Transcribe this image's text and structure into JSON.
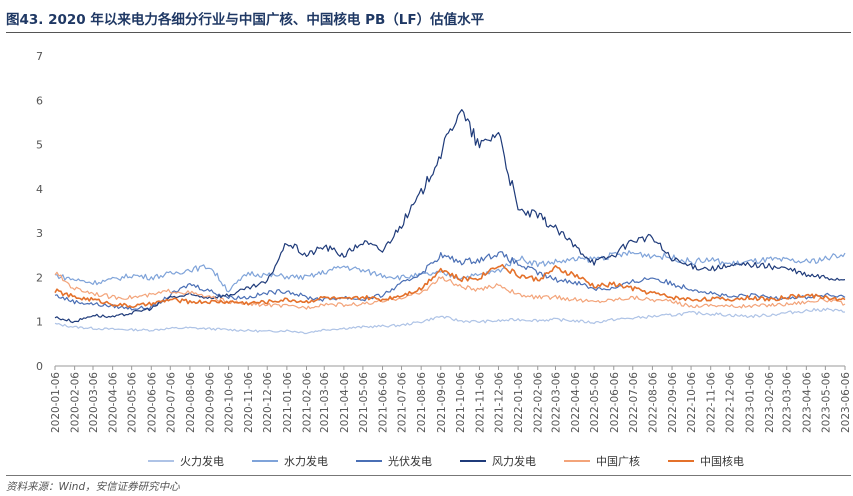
{
  "title": "图43. 2020 年以来电力各细分行业与中国广核、中国核电 PB（LF）估值水平",
  "source": "资料来源：Wind，安信证券研究中心",
  "chart_data": {
    "type": "line",
    "ylim": [
      0,
      7
    ],
    "yticks": [
      0,
      1,
      2,
      3,
      4,
      5,
      6,
      7
    ],
    "x_start": "2020-01-06",
    "x_end": "2023-06-06",
    "xticks": [
      "2020-01-06",
      "2020-02-06",
      "2020-03-06",
      "2020-04-06",
      "2020-05-06",
      "2020-06-06",
      "2020-07-06",
      "2020-08-06",
      "2020-09-06",
      "2020-10-06",
      "2020-11-06",
      "2020-12-06",
      "2021-01-06",
      "2021-02-06",
      "2021-03-06",
      "2021-04-06",
      "2021-05-06",
      "2021-06-06",
      "2021-07-06",
      "2021-08-06",
      "2021-09-06",
      "2021-10-06",
      "2021-11-06",
      "2021-12-06",
      "2022-01-06",
      "2022-02-06",
      "2022-03-06",
      "2022-04-06",
      "2022-05-06",
      "2022-06-06",
      "2022-07-06",
      "2022-08-06",
      "2022-09-06",
      "2022-10-06",
      "2022-11-06",
      "2022-12-06",
      "2023-01-06",
      "2023-02-06",
      "2023-03-06",
      "2023-04-06",
      "2023-05-06",
      "2023-06-06"
    ],
    "grid": false,
    "legend": "bottom",
    "series": [
      {
        "name": "火力发电",
        "color": "#aec3e6",
        "width": 1.2,
        "points": [
          [
            "2020-01-06",
            0.95
          ],
          [
            "2020-02-06",
            0.88
          ],
          [
            "2020-03-06",
            0.85
          ],
          [
            "2020-04-06",
            0.83
          ],
          [
            "2020-05-06",
            0.82
          ],
          [
            "2020-06-06",
            0.81
          ],
          [
            "2020-07-06",
            0.85
          ],
          [
            "2020-08-06",
            0.86
          ],
          [
            "2020-09-06",
            0.84
          ],
          [
            "2020-10-06",
            0.82
          ],
          [
            "2020-11-06",
            0.8
          ],
          [
            "2020-12-06",
            0.78
          ],
          [
            "2021-01-06",
            0.8
          ],
          [
            "2021-02-06",
            0.75
          ],
          [
            "2021-03-06",
            0.82
          ],
          [
            "2021-04-06",
            0.85
          ],
          [
            "2021-05-06",
            0.88
          ],
          [
            "2021-06-06",
            0.9
          ],
          [
            "2021-07-06",
            0.92
          ],
          [
            "2021-08-06",
            1.0
          ],
          [
            "2021-09-06",
            1.12
          ],
          [
            "2021-10-06",
            1.02
          ],
          [
            "2021-11-06",
            1.0
          ],
          [
            "2021-12-06",
            1.02
          ],
          [
            "2022-01-06",
            1.05
          ],
          [
            "2022-02-06",
            1.03
          ],
          [
            "2022-03-06",
            1.05
          ],
          [
            "2022-04-06",
            1.02
          ],
          [
            "2022-05-06",
            0.98
          ],
          [
            "2022-06-06",
            1.05
          ],
          [
            "2022-07-06",
            1.08
          ],
          [
            "2022-08-06",
            1.12
          ],
          [
            "2022-09-06",
            1.15
          ],
          [
            "2022-10-06",
            1.2
          ],
          [
            "2022-11-06",
            1.18
          ],
          [
            "2022-12-06",
            1.15
          ],
          [
            "2023-01-06",
            1.12
          ],
          [
            "2023-02-06",
            1.15
          ],
          [
            "2023-03-06",
            1.2
          ],
          [
            "2023-04-06",
            1.25
          ],
          [
            "2023-05-06",
            1.28
          ],
          [
            "2023-06-06",
            1.22
          ]
        ]
      },
      {
        "name": "水力发电",
        "color": "#7fa3d9",
        "width": 1.2,
        "points": [
          [
            "2020-01-06",
            2.05
          ],
          [
            "2020-02-06",
            1.95
          ],
          [
            "2020-03-06",
            1.88
          ],
          [
            "2020-04-06",
            1.95
          ],
          [
            "2020-05-06",
            2.05
          ],
          [
            "2020-06-06",
            2.0
          ],
          [
            "2020-07-06",
            2.08
          ],
          [
            "2020-08-06",
            2.18
          ],
          [
            "2020-09-06",
            2.25
          ],
          [
            "2020-10-06",
            1.7
          ],
          [
            "2020-11-06",
            2.1
          ],
          [
            "2020-12-06",
            2.05
          ],
          [
            "2021-01-06",
            2.02
          ],
          [
            "2021-02-06",
            2.0
          ],
          [
            "2021-03-06",
            2.12
          ],
          [
            "2021-04-06",
            2.25
          ],
          [
            "2021-05-06",
            2.15
          ],
          [
            "2021-06-06",
            2.05
          ],
          [
            "2021-07-06",
            2.0
          ],
          [
            "2021-08-06",
            2.05
          ],
          [
            "2021-09-06",
            2.1
          ],
          [
            "2021-10-06",
            2.0
          ],
          [
            "2021-11-06",
            2.05
          ],
          [
            "2021-12-06",
            2.15
          ],
          [
            "2022-01-06",
            2.45
          ],
          [
            "2022-02-06",
            2.3
          ],
          [
            "2022-03-06",
            2.35
          ],
          [
            "2022-04-06",
            2.4
          ],
          [
            "2022-05-06",
            2.42
          ],
          [
            "2022-06-06",
            2.5
          ],
          [
            "2022-07-06",
            2.55
          ],
          [
            "2022-08-06",
            2.5
          ],
          [
            "2022-09-06",
            2.45
          ],
          [
            "2022-10-06",
            2.35
          ],
          [
            "2022-11-06",
            2.4
          ],
          [
            "2022-12-06",
            2.3
          ],
          [
            "2023-01-06",
            2.35
          ],
          [
            "2023-02-06",
            2.4
          ],
          [
            "2023-03-06",
            2.38
          ],
          [
            "2023-04-06",
            2.35
          ],
          [
            "2023-05-06",
            2.42
          ],
          [
            "2023-06-06",
            2.55
          ]
        ]
      },
      {
        "name": "光伏发电",
        "color": "#4a6fb5",
        "width": 1.2,
        "points": [
          [
            "2020-01-06",
            1.6
          ],
          [
            "2020-02-06",
            1.45
          ],
          [
            "2020-03-06",
            1.4
          ],
          [
            "2020-04-06",
            1.35
          ],
          [
            "2020-05-06",
            1.3
          ],
          [
            "2020-06-06",
            1.32
          ],
          [
            "2020-07-06",
            1.6
          ],
          [
            "2020-08-06",
            1.85
          ],
          [
            "2020-09-06",
            1.7
          ],
          [
            "2020-10-06",
            1.55
          ],
          [
            "2020-11-06",
            1.55
          ],
          [
            "2020-12-06",
            1.65
          ],
          [
            "2021-01-06",
            1.7
          ],
          [
            "2021-02-06",
            1.55
          ],
          [
            "2021-03-06",
            1.5
          ],
          [
            "2021-04-06",
            1.55
          ],
          [
            "2021-05-06",
            1.5
          ],
          [
            "2021-06-06",
            1.6
          ],
          [
            "2021-07-06",
            1.85
          ],
          [
            "2021-08-06",
            2.1
          ],
          [
            "2021-09-06",
            2.5
          ],
          [
            "2021-10-06",
            2.35
          ],
          [
            "2021-11-06",
            2.4
          ],
          [
            "2021-12-06",
            2.55
          ],
          [
            "2022-01-06",
            2.3
          ],
          [
            "2022-02-06",
            2.1
          ],
          [
            "2022-03-06",
            1.95
          ],
          [
            "2022-04-06",
            1.9
          ],
          [
            "2022-05-06",
            1.75
          ],
          [
            "2022-06-06",
            1.75
          ],
          [
            "2022-07-06",
            1.9
          ],
          [
            "2022-08-06",
            2.0
          ],
          [
            "2022-09-06",
            1.85
          ],
          [
            "2022-10-06",
            1.75
          ],
          [
            "2022-11-06",
            1.65
          ],
          [
            "2022-12-06",
            1.55
          ],
          [
            "2023-01-06",
            1.6
          ],
          [
            "2023-02-06",
            1.55
          ],
          [
            "2023-03-06",
            1.55
          ],
          [
            "2023-04-06",
            1.55
          ],
          [
            "2023-05-06",
            1.6
          ],
          [
            "2023-06-06",
            1.55
          ]
        ]
      },
      {
        "name": "风力发电",
        "color": "#1f3b7a",
        "width": 1.2,
        "points": [
          [
            "2020-01-06",
            1.1
          ],
          [
            "2020-02-06",
            1.0
          ],
          [
            "2020-03-06",
            1.15
          ],
          [
            "2020-04-06",
            1.1
          ],
          [
            "2020-05-06",
            1.2
          ],
          [
            "2020-06-06",
            1.3
          ],
          [
            "2020-07-06",
            1.55
          ],
          [
            "2020-08-06",
            1.6
          ],
          [
            "2020-09-06",
            1.55
          ],
          [
            "2020-10-06",
            1.6
          ],
          [
            "2020-11-06",
            1.75
          ],
          [
            "2020-12-06",
            1.9
          ],
          [
            "2021-01-06",
            2.8
          ],
          [
            "2021-02-06",
            2.5
          ],
          [
            "2021-03-06",
            2.7
          ],
          [
            "2021-04-06",
            2.5
          ],
          [
            "2021-05-06",
            2.8
          ],
          [
            "2021-06-06",
            2.6
          ],
          [
            "2021-07-06",
            3.2
          ],
          [
            "2021-08-06",
            3.9
          ],
          [
            "2021-09-06",
            4.8
          ],
          [
            "2021-10-06",
            5.8
          ],
          [
            "2021-11-06",
            4.95
          ],
          [
            "2021-12-06",
            5.3
          ],
          [
            "2022-01-06",
            3.5
          ],
          [
            "2022-02-06",
            3.4
          ],
          [
            "2022-03-06",
            3.1
          ],
          [
            "2022-04-06",
            2.7
          ],
          [
            "2022-05-06",
            2.35
          ],
          [
            "2022-06-06",
            2.5
          ],
          [
            "2022-07-06",
            2.85
          ],
          [
            "2022-08-06",
            2.9
          ],
          [
            "2022-09-06",
            2.4
          ],
          [
            "2022-10-06",
            2.25
          ],
          [
            "2022-11-06",
            2.2
          ],
          [
            "2022-12-06",
            2.25
          ],
          [
            "2023-01-06",
            2.3
          ],
          [
            "2023-02-06",
            2.25
          ],
          [
            "2023-03-06",
            2.2
          ],
          [
            "2023-04-06",
            2.05
          ],
          [
            "2023-05-06",
            2.0
          ],
          [
            "2023-06-06",
            1.95
          ]
        ]
      },
      {
        "name": "中国广核",
        "color": "#f3a47a",
        "width": 1.2,
        "points": [
          [
            "2020-01-06",
            2.1
          ],
          [
            "2020-02-06",
            1.75
          ],
          [
            "2020-03-06",
            1.65
          ],
          [
            "2020-04-06",
            1.55
          ],
          [
            "2020-05-06",
            1.55
          ],
          [
            "2020-06-06",
            1.6
          ],
          [
            "2020-07-06",
            1.7
          ],
          [
            "2020-08-06",
            1.65
          ],
          [
            "2020-09-06",
            1.55
          ],
          [
            "2020-10-06",
            1.45
          ],
          [
            "2020-11-06",
            1.4
          ],
          [
            "2020-12-06",
            1.38
          ],
          [
            "2021-01-06",
            1.35
          ],
          [
            "2021-02-06",
            1.32
          ],
          [
            "2021-03-06",
            1.4
          ],
          [
            "2021-04-06",
            1.38
          ],
          [
            "2021-05-06",
            1.4
          ],
          [
            "2021-06-06",
            1.45
          ],
          [
            "2021-07-06",
            1.55
          ],
          [
            "2021-08-06",
            1.65
          ],
          [
            "2021-09-06",
            2.0
          ],
          [
            "2021-10-06",
            1.8
          ],
          [
            "2021-11-06",
            1.7
          ],
          [
            "2021-12-06",
            1.85
          ],
          [
            "2022-01-06",
            1.6
          ],
          [
            "2022-02-06",
            1.55
          ],
          [
            "2022-03-06",
            1.55
          ],
          [
            "2022-04-06",
            1.5
          ],
          [
            "2022-05-06",
            1.45
          ],
          [
            "2022-06-06",
            1.5
          ],
          [
            "2022-07-06",
            1.55
          ],
          [
            "2022-08-06",
            1.5
          ],
          [
            "2022-09-06",
            1.45
          ],
          [
            "2022-10-06",
            1.35
          ],
          [
            "2022-11-06",
            1.38
          ],
          [
            "2022-12-06",
            1.35
          ],
          [
            "2023-01-06",
            1.35
          ],
          [
            "2023-02-06",
            1.38
          ],
          [
            "2023-03-06",
            1.4
          ],
          [
            "2023-04-06",
            1.45
          ],
          [
            "2023-05-06",
            1.5
          ],
          [
            "2023-06-06",
            1.4
          ]
        ]
      },
      {
        "name": "中国核电",
        "color": "#e4712b",
        "width": 1.6,
        "points": [
          [
            "2020-01-06",
            1.7
          ],
          [
            "2020-02-06",
            1.55
          ],
          [
            "2020-03-06",
            1.5
          ],
          [
            "2020-04-06",
            1.4
          ],
          [
            "2020-05-06",
            1.35
          ],
          [
            "2020-06-06",
            1.4
          ],
          [
            "2020-07-06",
            1.5
          ],
          [
            "2020-08-06",
            1.45
          ],
          [
            "2020-09-06",
            1.45
          ],
          [
            "2020-10-06",
            1.45
          ],
          [
            "2020-11-06",
            1.42
          ],
          [
            "2020-12-06",
            1.45
          ],
          [
            "2021-01-06",
            1.5
          ],
          [
            "2021-02-06",
            1.45
          ],
          [
            "2021-03-06",
            1.55
          ],
          [
            "2021-04-06",
            1.5
          ],
          [
            "2021-05-06",
            1.55
          ],
          [
            "2021-06-06",
            1.5
          ],
          [
            "2021-07-06",
            1.6
          ],
          [
            "2021-08-06",
            1.75
          ],
          [
            "2021-09-06",
            2.2
          ],
          [
            "2021-10-06",
            1.95
          ],
          [
            "2021-11-06",
            2.0
          ],
          [
            "2021-12-06",
            2.3
          ],
          [
            "2022-01-06",
            2.05
          ],
          [
            "2022-02-06",
            1.95
          ],
          [
            "2022-03-06",
            2.2
          ],
          [
            "2022-04-06",
            2.05
          ],
          [
            "2022-05-06",
            1.8
          ],
          [
            "2022-06-06",
            1.85
          ],
          [
            "2022-07-06",
            1.75
          ],
          [
            "2022-08-06",
            1.65
          ],
          [
            "2022-09-06",
            1.55
          ],
          [
            "2022-10-06",
            1.5
          ],
          [
            "2022-11-06",
            1.52
          ],
          [
            "2022-12-06",
            1.5
          ],
          [
            "2023-01-06",
            1.55
          ],
          [
            "2023-02-06",
            1.5
          ],
          [
            "2023-03-06",
            1.55
          ],
          [
            "2023-04-06",
            1.6
          ],
          [
            "2023-05-06",
            1.55
          ],
          [
            "2023-06-06",
            1.5
          ]
        ]
      }
    ]
  }
}
